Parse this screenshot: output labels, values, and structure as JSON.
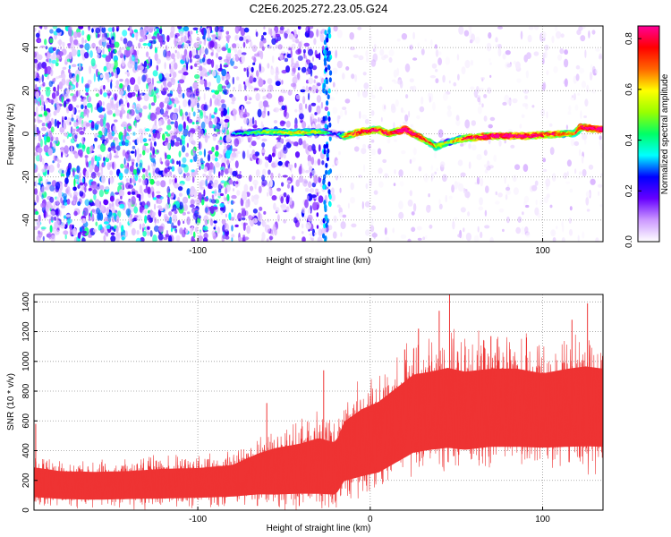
{
  "figure": {
    "title": "C2E6.2025.272.23.05.G24"
  },
  "chart_data": [
    {
      "type": "heatmap",
      "xlabel": "Height of straight line (km)",
      "ylabel": "Frequency (Hz)",
      "xlim": [
        -195,
        135
      ],
      "ylim": [
        -50,
        50
      ],
      "x_ticks": [
        -100,
        0,
        100
      ],
      "y_ticks": [
        -40,
        -20,
        0,
        20,
        40
      ],
      "grid": true,
      "colorbar": {
        "label": "Normalized spectral amplitude",
        "range": [
          0.0,
          0.85
        ],
        "ticks": [
          0.0,
          0.2,
          0.4,
          0.6,
          0.8
        ],
        "colors": [
          "#ffffff",
          "#cc99ff",
          "#6600ff",
          "#0000ff",
          "#00ffff",
          "#00ff66",
          "#99ff00",
          "#ffff00",
          "#ff6600",
          "#ff0000",
          "#ff0099"
        ]
      },
      "signal_trace": {
        "x": [
          -80,
          -60,
          -45,
          -30,
          -20,
          -15,
          -5,
          5,
          10,
          20,
          30,
          38,
          45,
          55,
          70,
          90,
          110,
          118,
          122,
          135
        ],
        "y": [
          0,
          1,
          0.5,
          1,
          0,
          -1,
          1,
          2,
          0,
          2,
          -2,
          -6,
          -4,
          -2,
          -1,
          -1,
          0,
          0,
          3,
          2
        ],
        "amplitude": [
          0.2,
          0.35,
          0.45,
          0.4,
          0.05,
          0.55,
          0.65,
          0.7,
          0.6,
          0.8,
          0.6,
          0.45,
          0.4,
          0.6,
          0.75,
          0.7,
          0.6,
          0.5,
          0.75,
          0.8
        ]
      },
      "noise_regions": [
        {
          "x": [
            -195,
            -80
          ],
          "level": 0.25
        },
        {
          "x": [
            -80,
            -25
          ],
          "level": 0.15
        },
        {
          "x": [
            -25,
            135
          ],
          "level": 0.04
        }
      ]
    },
    {
      "type": "line",
      "xlabel": "Height of straight line (km)",
      "ylabel": "SNR (10 * v/v)",
      "xlim": [
        -195,
        135
      ],
      "ylim": [
        0,
        1450
      ],
      "x_ticks": [
        -100,
        0,
        100
      ],
      "y_ticks": [
        0,
        200,
        400,
        600,
        800,
        1000,
        1200,
        1400
      ],
      "grid": true,
      "series": [
        {
          "color": "#ee3333",
          "x": [
            -195,
            -180,
            -160,
            -140,
            -120,
            -100,
            -80,
            -65,
            -55,
            -40,
            -30,
            -20,
            -15,
            -5,
            5,
            15,
            25,
            35,
            45,
            55,
            70,
            85,
            100,
            115,
            125,
            135
          ],
          "y_mean": [
            200,
            180,
            175,
            180,
            190,
            195,
            210,
            260,
            280,
            300,
            320,
            300,
            420,
            480,
            520,
            600,
            680,
            700,
            720,
            700,
            720,
            720,
            700,
            720,
            730,
            720
          ],
          "y_spread": [
            160,
            150,
            150,
            150,
            160,
            160,
            170,
            220,
            250,
            270,
            300,
            280,
            320,
            360,
            380,
            400,
            420,
            420,
            430,
            420,
            420,
            420,
            400,
            420,
            430,
            420
          ],
          "peaks": [
            {
              "x": -194,
              "y": 580
            },
            {
              "x": -60,
              "y": 720
            },
            {
              "x": -27,
              "y": 940
            },
            {
              "x": 20,
              "y": 1080
            },
            {
              "x": 28,
              "y": 1220
            },
            {
              "x": 40,
              "y": 1340
            },
            {
              "x": 46,
              "y": 1450
            },
            {
              "x": 70,
              "y": 1170
            },
            {
              "x": 117,
              "y": 1280
            },
            {
              "x": 126,
              "y": 1390
            }
          ]
        }
      ]
    }
  ]
}
